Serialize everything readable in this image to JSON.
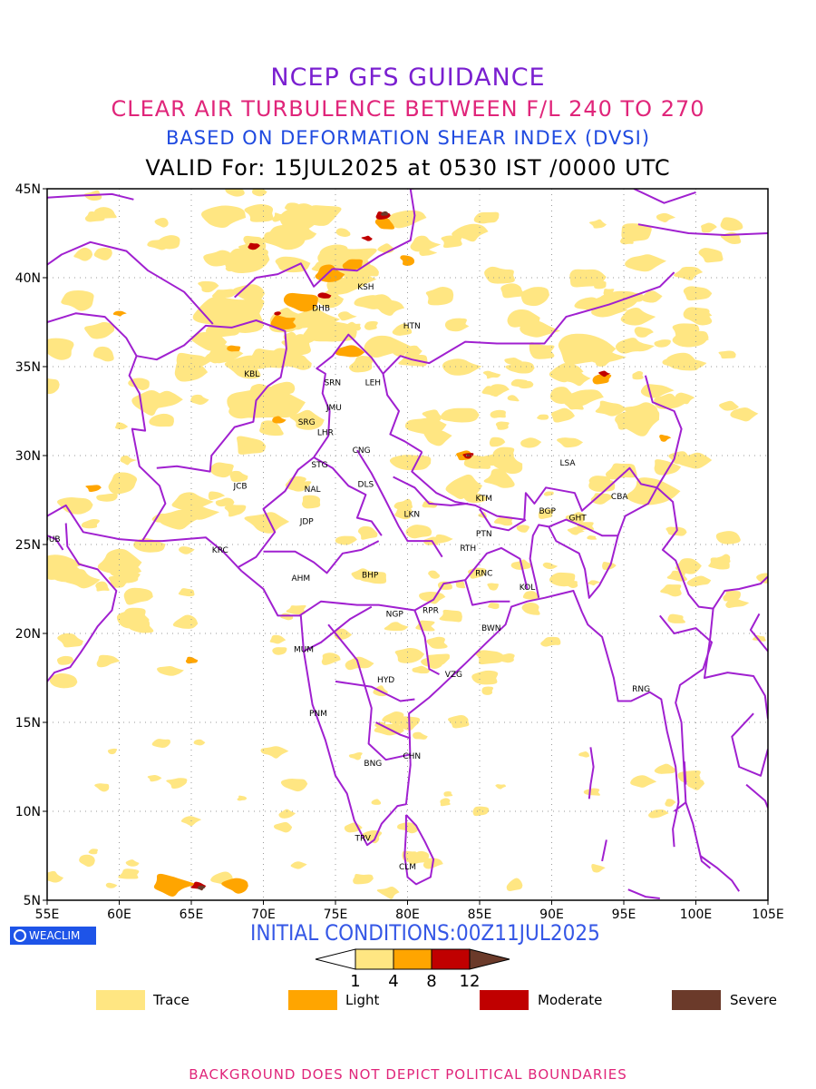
{
  "header": {
    "line1": "NCEP GFS GUIDANCE",
    "line2": "CLEAR AIR TURBULENCE BETWEEN F/L 240 TO 270",
    "line3": "BASED ON DEFORMATION SHEAR INDEX (DVSI)",
    "line4": "VALID For: 15JUL2025 at 0530 IST /0000 UTC"
  },
  "axes": {
    "lat_labels": [
      "45N",
      "40N",
      "35N",
      "30N",
      "25N",
      "20N",
      "15N",
      "10N",
      "5N"
    ],
    "lon_labels": [
      "55E",
      "60E",
      "65E",
      "70E",
      "75E",
      "80E",
      "85E",
      "90E",
      "95E",
      "100E",
      "105E"
    ],
    "lon_range": [
      55,
      105
    ],
    "lat_range": [
      5,
      45
    ]
  },
  "stations": [
    {
      "name": "DHB",
      "lon": 74.0,
      "lat": 38.3
    },
    {
      "name": "KSH",
      "lon": 77.1,
      "lat": 39.5
    },
    {
      "name": "HTN",
      "lon": 80.3,
      "lat": 37.3
    },
    {
      "name": "KBL",
      "lon": 69.2,
      "lat": 34.6
    },
    {
      "name": "SRN",
      "lon": 74.8,
      "lat": 34.1
    },
    {
      "name": "LEH",
      "lon": 77.6,
      "lat": 34.1
    },
    {
      "name": "JMU",
      "lon": 74.9,
      "lat": 32.7
    },
    {
      "name": "SRG",
      "lon": 73.0,
      "lat": 31.9
    },
    {
      "name": "LHR",
      "lon": 74.3,
      "lat": 31.3
    },
    {
      "name": "CNG",
      "lon": 76.8,
      "lat": 30.3
    },
    {
      "name": "STG",
      "lon": 73.9,
      "lat": 29.5
    },
    {
      "name": "LSA",
      "lon": 91.1,
      "lat": 29.6
    },
    {
      "name": "JCB",
      "lon": 68.4,
      "lat": 28.3
    },
    {
      "name": "NAL",
      "lon": 73.4,
      "lat": 28.1
    },
    {
      "name": "DLS",
      "lon": 77.1,
      "lat": 28.4
    },
    {
      "name": "KTM",
      "lon": 85.3,
      "lat": 27.6
    },
    {
      "name": "BGP",
      "lon": 89.7,
      "lat": 26.9
    },
    {
      "name": "CBA",
      "lon": 94.7,
      "lat": 27.7
    },
    {
      "name": "GHT",
      "lon": 91.8,
      "lat": 26.5
    },
    {
      "name": "JDP",
      "lon": 73.0,
      "lat": 26.3
    },
    {
      "name": "LKN",
      "lon": 80.3,
      "lat": 26.7
    },
    {
      "name": "PTN",
      "lon": 85.3,
      "lat": 25.6
    },
    {
      "name": "DUB",
      "lon": 55.3,
      "lat": 25.3
    },
    {
      "name": "KRC",
      "lon": 67.0,
      "lat": 24.7
    },
    {
      "name": "RTH",
      "lon": 84.2,
      "lat": 24.8
    },
    {
      "name": "BHP",
      "lon": 77.4,
      "lat": 23.3
    },
    {
      "name": "AHM",
      "lon": 72.6,
      "lat": 23.1
    },
    {
      "name": "RNC",
      "lon": 85.3,
      "lat": 23.4
    },
    {
      "name": "KOL",
      "lon": 88.3,
      "lat": 22.6
    },
    {
      "name": "NGP",
      "lon": 79.1,
      "lat": 21.1
    },
    {
      "name": "RPR",
      "lon": 81.6,
      "lat": 21.3
    },
    {
      "name": "BWN",
      "lon": 85.8,
      "lat": 20.3
    },
    {
      "name": "MUM",
      "lon": 72.8,
      "lat": 19.1
    },
    {
      "name": "HYD",
      "lon": 78.5,
      "lat": 17.4
    },
    {
      "name": "VZG",
      "lon": 83.2,
      "lat": 17.7
    },
    {
      "name": "RNG",
      "lon": 96.2,
      "lat": 16.9
    },
    {
      "name": "PNM",
      "lon": 73.8,
      "lat": 15.5
    },
    {
      "name": "CHN",
      "lon": 80.3,
      "lat": 13.1
    },
    {
      "name": "BNG",
      "lon": 77.6,
      "lat": 12.7
    },
    {
      "name": "TRV",
      "lon": 76.9,
      "lat": 8.5
    },
    {
      "name": "CLM",
      "lon": 80.0,
      "lat": 6.9
    }
  ],
  "colors": {
    "trace": "#ffe682",
    "light": "#ffa500",
    "moderate": "#c00000",
    "severe": "#6b3a2a",
    "boundary": "#a020d0"
  },
  "logo": {
    "text": "WEACLIM"
  },
  "initial_conditions": "INITIAL CONDITIONS:00Z11JUL2025",
  "colorbar": {
    "ticks": [
      "1",
      "4",
      "8",
      "12"
    ]
  },
  "legend": [
    {
      "label": "Trace",
      "color": "#ffe682"
    },
    {
      "label": "Light",
      "color": "#ffa500"
    },
    {
      "label": "Moderate",
      "color": "#c00000"
    },
    {
      "label": "Severe",
      "color": "#6b3a2a"
    }
  ],
  "footer": "BACKGROUND DOES NOT DEPICT POLITICAL BOUNDARIES"
}
